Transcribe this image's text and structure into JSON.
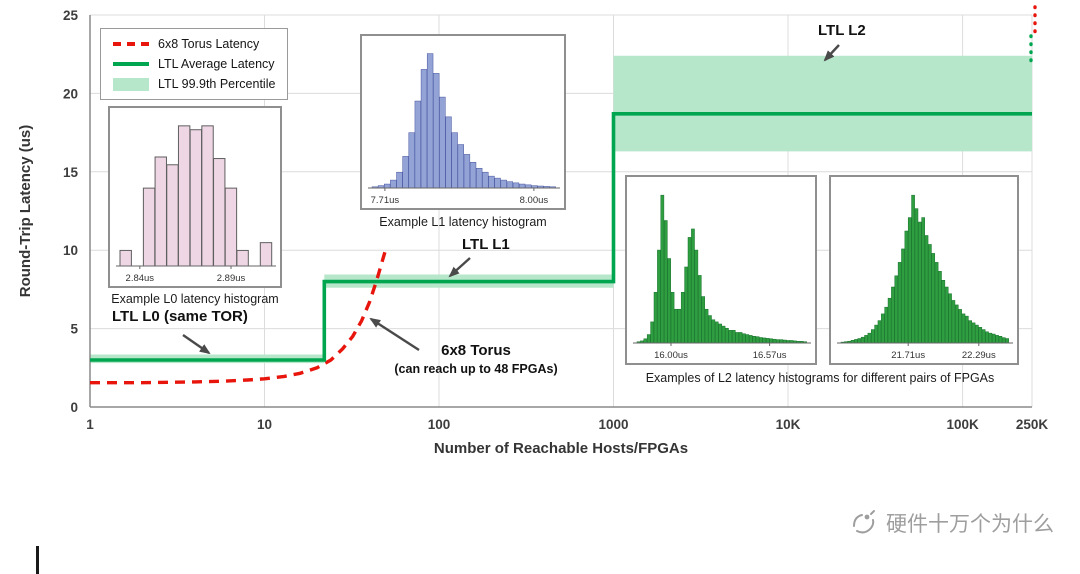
{
  "chart_data": {
    "type": "line",
    "title": "",
    "xlabel": "Number of Reachable Hosts/FPGAs",
    "ylabel": "Round-Trip Latency (us)",
    "x_scale": "log",
    "xlim": [
      1,
      250000
    ],
    "ylim": [
      0,
      25
    ],
    "grid": true,
    "legend_position": "top-left",
    "x_ticks": [
      {
        "v": 1,
        "label": "1"
      },
      {
        "v": 10,
        "label": "10"
      },
      {
        "v": 100,
        "label": "100"
      },
      {
        "v": 1000,
        "label": "1000"
      },
      {
        "v": 10000,
        "label": "10K"
      },
      {
        "v": 100000,
        "label": "100K"
      },
      {
        "v": 250000,
        "label": "250K"
      }
    ],
    "y_ticks": [
      0,
      5,
      10,
      15,
      20,
      25
    ],
    "legend": [
      "6x8 Torus Latency",
      "LTL Average Latency",
      "LTL 99.9th Percentile"
    ],
    "series": [
      {
        "name": "6x8 Torus Latency",
        "type": "line",
        "dash": true,
        "color": "#e8150d",
        "points": [
          [
            1,
            1.55
          ],
          [
            2,
            1.55
          ],
          [
            3,
            1.58
          ],
          [
            4,
            1.6
          ],
          [
            6,
            1.65
          ],
          [
            8,
            1.72
          ],
          [
            10,
            1.8
          ],
          [
            13,
            1.95
          ],
          [
            16,
            2.15
          ],
          [
            20,
            2.5
          ],
          [
            24,
            3.0
          ],
          [
            28,
            3.7
          ],
          [
            32,
            4.5
          ],
          [
            36,
            5.5
          ],
          [
            40,
            6.7
          ],
          [
            44,
            8.1
          ],
          [
            47,
            9.2
          ],
          [
            49,
            9.9
          ]
        ]
      },
      {
        "name": "LTL Average Latency",
        "type": "step",
        "color": "#00a550",
        "points": [
          [
            1,
            3
          ],
          [
            22,
            3
          ],
          [
            22,
            8
          ],
          [
            1000,
            8
          ],
          [
            1000,
            18.7
          ],
          [
            250000,
            18.7
          ]
        ]
      },
      {
        "name": "LTL 99.9th Percentile",
        "type": "band",
        "color": "#b7e7ca",
        "segments": [
          [
            1,
            22,
            2.8,
            3.35
          ],
          [
            22,
            1000,
            7.6,
            8.45
          ],
          [
            1000,
            250000,
            16.3,
            22.4
          ]
        ]
      }
    ],
    "extensions": [
      {
        "x": 250000,
        "from": 22.1,
        "to": 23.7,
        "color": "#00a550"
      },
      {
        "x": 250000,
        "from": 23.95,
        "to": 25.6,
        "color": "#e8150d"
      }
    ],
    "annotations": {
      "l0": "LTL L0 (same TOR)",
      "l1": "LTL L1",
      "l2": "LTL L2",
      "torus_title": "6x8 Torus",
      "torus_sub": "(can reach up to 48 FPGAs)"
    },
    "insets": [
      {
        "caption": "Example L0 latency histogram",
        "fill": "#eed6e4",
        "stroke": "#5f5f5f",
        "labels": [
          {
            "text": "2.84us",
            "pos": 0.13
          },
          {
            "text": "2.89us",
            "pos": 0.73
          }
        ],
        "bars": [
          2,
          0,
          10,
          14,
          13,
          18,
          17.5,
          18,
          13.8,
          10,
          2,
          0,
          3
        ]
      },
      {
        "caption": "Example L1 latency histogram",
        "fill": "#93a3d6",
        "stroke": "#44529e",
        "labels": [
          {
            "text": "7.71us",
            "pos": 0.07
          },
          {
            "text": "8.00us",
            "pos": 0.88
          }
        ],
        "bars": [
          0.3,
          0.6,
          1,
          2,
          4,
          8,
          14,
          22,
          30,
          34,
          29,
          23,
          18,
          14,
          11,
          8.5,
          6.5,
          5,
          4,
          3,
          2.5,
          2,
          1.6,
          1.3,
          1,
          0.8,
          0.6,
          0.5,
          0.4,
          0.3
        ]
      },
      {
        "fill": "#2f9e41",
        "stroke": "#15702a",
        "labels": [
          {
            "text": "16.00us",
            "pos": 0.2
          },
          {
            "text": "16.57us",
            "pos": 0.78
          }
        ],
        "bars": [
          0.3,
          0.5,
          1,
          2,
          5,
          12,
          22,
          35,
          29,
          20,
          12,
          8,
          8,
          12,
          18,
          25,
          27,
          22,
          16,
          11,
          8,
          6.5,
          5.5,
          5,
          4.5,
          4,
          3.5,
          3,
          3,
          2.5,
          2.5,
          2.2,
          2,
          1.8,
          1.6,
          1.5,
          1.3,
          1.2,
          1.1,
          1,
          0.9,
          0.8,
          0.8,
          0.7,
          0.6,
          0.6,
          0.5,
          0.4,
          0.4,
          0.3
        ]
      },
      {
        "fill": "#2f9e41",
        "stroke": "#15702a",
        "labels": [
          {
            "text": "21.71us",
            "pos": 0.4
          },
          {
            "text": "22.29us",
            "pos": 0.82
          }
        ],
        "bars": [
          0.2,
          0.3,
          0.4,
          0.6,
          0.8,
          1,
          1.3,
          1.7,
          2.2,
          3,
          4,
          5,
          6.5,
          8,
          10,
          12.5,
          15,
          18,
          21,
          25,
          28,
          33,
          30,
          27,
          28,
          24,
          22,
          20,
          18,
          16,
          14,
          12.5,
          11,
          9.5,
          8.5,
          7.5,
          6.5,
          6,
          5,
          4.5,
          4,
          3.5,
          3,
          2.5,
          2.2,
          2,
          1.7,
          1.5,
          1.2,
          1
        ]
      }
    ],
    "l2_caption": "Examples of L2 latency histograms for different pairs of FPGAs"
  },
  "watermark": {
    "text": "硬件十万个为什么"
  }
}
